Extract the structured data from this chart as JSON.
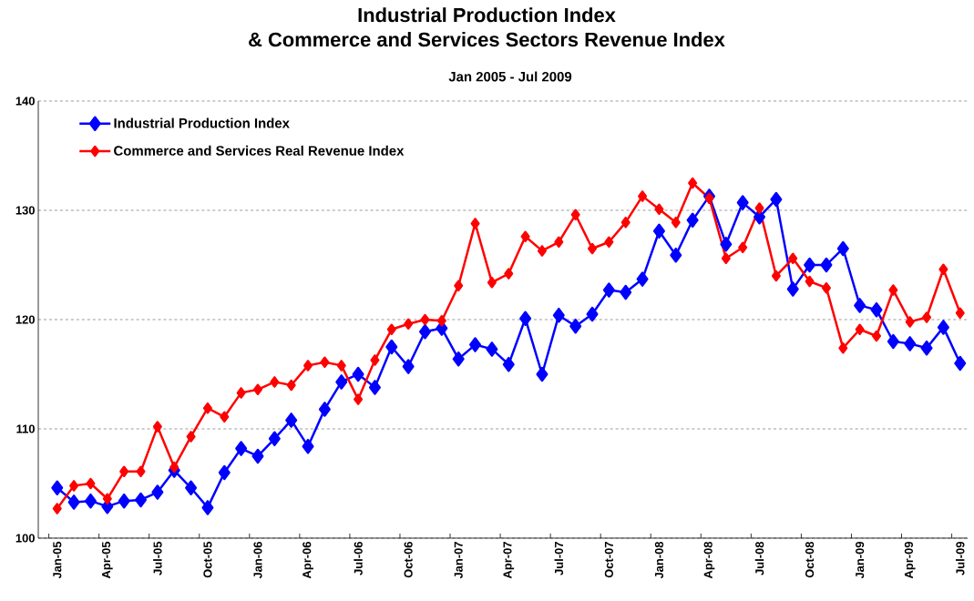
{
  "chart_data": {
    "type": "line",
    "title": "Industrial Production Index\n& Commerce and Services Sectors Revenue Index",
    "subtitle": "Jan 2005 - Jul 2009",
    "categories": [
      "Jan-05",
      null,
      null,
      "Apr-05",
      null,
      null,
      "Jul-05",
      null,
      null,
      "Oct-05",
      null,
      null,
      "Jan-06",
      null,
      null,
      "Apr-06",
      null,
      null,
      "Jul-06",
      null,
      null,
      "Oct-06",
      null,
      null,
      "Jan-07",
      null,
      null,
      "Apr-07",
      null,
      null,
      "Jul-07",
      null,
      null,
      "Oct-07",
      null,
      null,
      "Jan-08",
      null,
      null,
      "Apr-08",
      null,
      null,
      "Jul-08",
      null,
      null,
      "Oct-08",
      null,
      null,
      "Jan-09",
      null,
      null,
      "Apr-09",
      null,
      null,
      "Jul-09"
    ],
    "series": [
      {
        "name": "Industrial Production Index",
        "color": "#0000ff",
        "values": [
          104.6,
          103.3,
          103.4,
          102.9,
          103.4,
          103.5,
          104.2,
          106.2,
          104.6,
          102.8,
          106.0,
          108.2,
          107.5,
          109.1,
          110.8,
          108.4,
          111.8,
          114.3,
          115.0,
          113.8,
          117.5,
          115.7,
          118.9,
          119.2,
          116.4,
          117.7,
          117.3,
          115.9,
          120.1,
          115.0,
          120.4,
          119.4,
          120.5,
          122.7,
          122.5,
          123.7,
          128.1,
          125.9,
          129.1,
          131.3,
          126.9,
          130.7,
          129.4,
          131.0,
          122.8,
          125.0,
          125.0,
          126.5,
          121.3,
          120.9,
          118.0,
          117.8,
          117.4,
          119.3,
          116.0
        ]
      },
      {
        "name": "Commerce and Services Real Revenue Index",
        "color": "#ff0000",
        "values": [
          102.7,
          104.8,
          105.0,
          103.6,
          106.1,
          106.1,
          110.2,
          106.5,
          109.3,
          111.9,
          111.1,
          113.3,
          113.6,
          114.3,
          114.0,
          115.8,
          116.1,
          115.8,
          112.7,
          116.3,
          119.1,
          119.6,
          120.0,
          119.9,
          123.1,
          128.8,
          123.4,
          124.2,
          127.6,
          126.3,
          127.1,
          129.6,
          126.5,
          127.1,
          128.9,
          131.3,
          130.1,
          128.9,
          132.5,
          131.1,
          125.6,
          126.6,
          130.2,
          124.0,
          125.6,
          123.5,
          122.9,
          117.4,
          119.1,
          118.5,
          122.7,
          119.8,
          120.2,
          124.6,
          120.6
        ]
      }
    ],
    "ylim": [
      100,
      140
    ],
    "yticks": [
      100,
      110,
      120,
      130,
      140
    ],
    "grid": "y",
    "legend": "top left",
    "marker": "diamond",
    "line_style": "solid"
  }
}
